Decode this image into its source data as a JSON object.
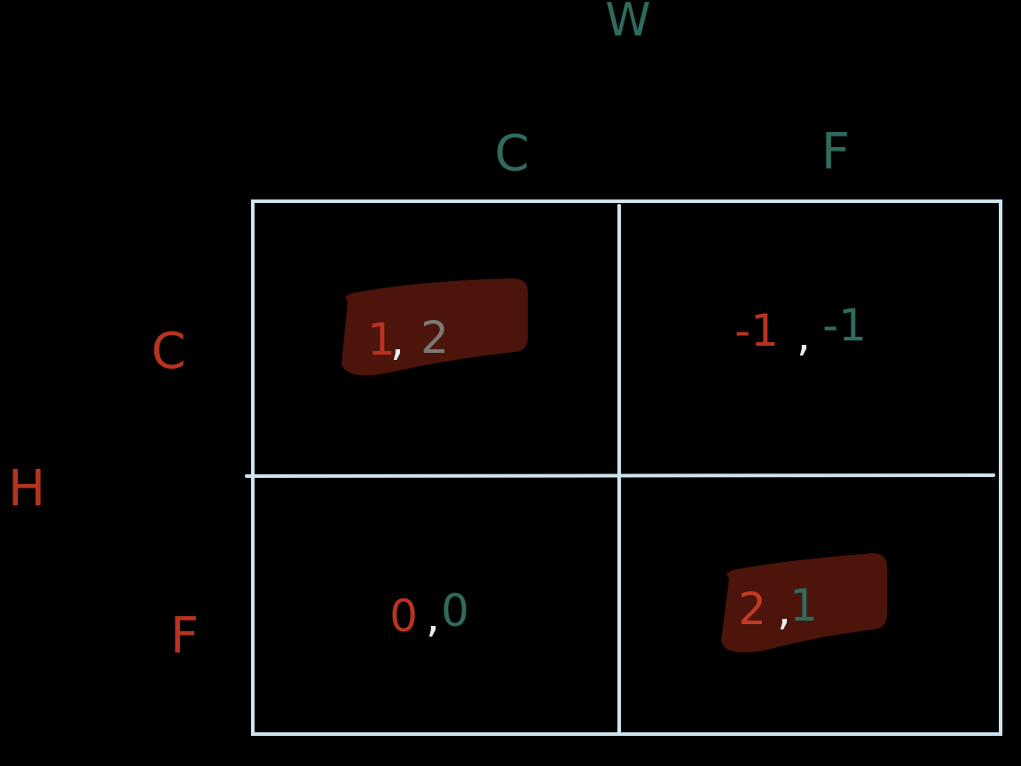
{
  "players": {
    "column": {
      "name": "W",
      "color": "#2f6b5f"
    },
    "row": {
      "name": "H",
      "color": "#b8331f"
    }
  },
  "column_strategies": [
    "C",
    "F"
  ],
  "row_strategies": [
    "C",
    "F"
  ],
  "cells": [
    {
      "row": "C",
      "col": "C",
      "h_payoff": "1",
      "w_payoff": "2",
      "highlighted": true
    },
    {
      "row": "C",
      "col": "F",
      "h_payoff": "-1",
      "w_payoff": "-1",
      "highlighted": false
    },
    {
      "row": "F",
      "col": "C",
      "h_payoff": "0",
      "w_payoff": "0",
      "highlighted": false
    },
    {
      "row": "F",
      "col": "F",
      "h_payoff": "2",
      "w_payoff": "1",
      "highlighted": true
    }
  ],
  "separator": ",",
  "colors": {
    "background": "#000000",
    "grid": "#cfe3ee",
    "highlight": "#4d140c",
    "comma": "#e6eef3",
    "w_payoff_alt": "#7a7a72"
  }
}
